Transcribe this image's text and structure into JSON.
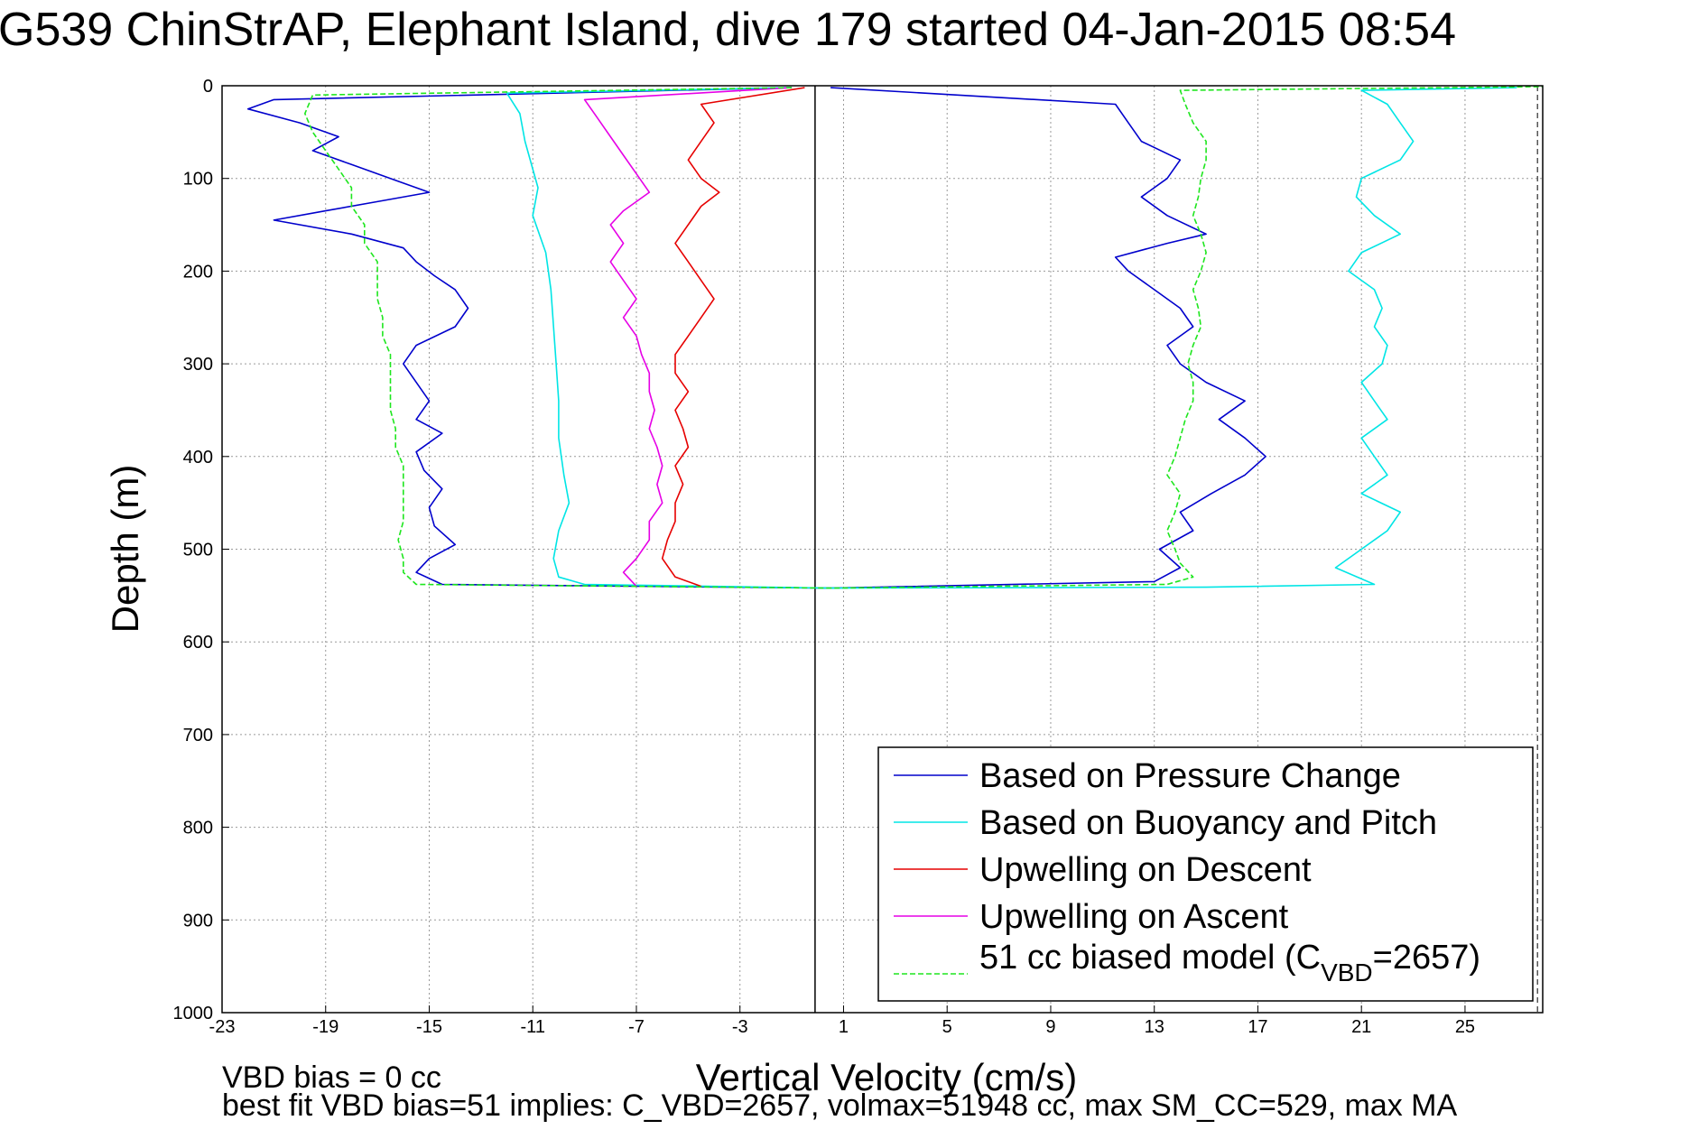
{
  "title": "G539 ChinStrAP, Elephant Island, dive 179 started 04-Jan-2015 08:54",
  "notes": {
    "line1": "VBD bias = 0 cc",
    "line2": "best fit VBD bias=51 implies: C_VBD=2657, volmax=51948 cc, max SM_CC=529, max MA"
  },
  "chart_data": {
    "type": "line",
    "title": "G539 ChinStrAP, Elephant Island, dive 179 started 04-Jan-2015 08:54",
    "xlabel": "Vertical Velocity (cm/s)",
    "ylabel": "Depth (m)",
    "xlim": [
      -23,
      28
    ],
    "ylim": [
      0,
      1000
    ],
    "y_reversed": true,
    "xticks": [
      -23,
      -19,
      -15,
      -11,
      -7,
      -3,
      1,
      5,
      9,
      13,
      17,
      21,
      25
    ],
    "yticks": [
      0,
      100,
      200,
      300,
      400,
      500,
      600,
      700,
      800,
      900,
      1000
    ],
    "grid": true,
    "legend_position": "bottom-right",
    "vertical_lines": [
      {
        "x": -0.1,
        "style": "solid"
      },
      {
        "x": 27.8,
        "style": "dashed"
      }
    ],
    "series": [
      {
        "name": "Based on Pressure Change",
        "color": "#0000cc",
        "style": "solid",
        "points": [
          [
            -1,
            2
          ],
          [
            -21,
            15
          ],
          [
            -22,
            25
          ],
          [
            -20,
            40
          ],
          [
            -18.5,
            55
          ],
          [
            -19.5,
            70
          ],
          [
            -18,
            85
          ],
          [
            -16.5,
            100
          ],
          [
            -15,
            115
          ],
          [
            -17,
            125
          ],
          [
            -19,
            135
          ],
          [
            -21,
            145
          ],
          [
            -18,
            160
          ],
          [
            -16,
            175
          ],
          [
            -15.5,
            190
          ],
          [
            -14.8,
            205
          ],
          [
            -14,
            220
          ],
          [
            -13.5,
            240
          ],
          [
            -14,
            260
          ],
          [
            -15.5,
            280
          ],
          [
            -16,
            300
          ],
          [
            -15.5,
            320
          ],
          [
            -15,
            340
          ],
          [
            -15.5,
            360
          ],
          [
            -14.5,
            375
          ],
          [
            -15.5,
            395
          ],
          [
            -15.2,
            415
          ],
          [
            -14.5,
            435
          ],
          [
            -15,
            455
          ],
          [
            -14.8,
            475
          ],
          [
            -14,
            495
          ],
          [
            -15,
            510
          ],
          [
            -15.5,
            525
          ],
          [
            -14.5,
            538
          ],
          [
            0.5,
            542
          ],
          [
            13,
            535
          ],
          [
            14,
            520
          ],
          [
            13.2,
            500
          ],
          [
            14.5,
            480
          ],
          [
            14,
            460
          ],
          [
            15.2,
            440
          ],
          [
            16.5,
            420
          ],
          [
            17.3,
            400
          ],
          [
            16.5,
            380
          ],
          [
            15.5,
            360
          ],
          [
            16.5,
            340
          ],
          [
            15,
            320
          ],
          [
            14,
            300
          ],
          [
            13.5,
            280
          ],
          [
            14.5,
            260
          ],
          [
            14,
            240
          ],
          [
            13,
            220
          ],
          [
            12,
            200
          ],
          [
            11.5,
            185
          ],
          [
            13.5,
            170
          ],
          [
            15,
            160
          ],
          [
            13.5,
            140
          ],
          [
            12.5,
            120
          ],
          [
            13.5,
            100
          ],
          [
            14,
            80
          ],
          [
            12.5,
            60
          ],
          [
            12,
            40
          ],
          [
            11.5,
            20
          ],
          [
            0.5,
            2
          ]
        ]
      },
      {
        "name": "Based on Buoyancy and Pitch",
        "color": "#00e5e5",
        "style": "solid",
        "points": [
          [
            -1,
            2
          ],
          [
            -12,
            8
          ],
          [
            -11.5,
            30
          ],
          [
            -11.3,
            60
          ],
          [
            -11,
            90
          ],
          [
            -10.8,
            110
          ],
          [
            -11,
            140
          ],
          [
            -10.5,
            180
          ],
          [
            -10.3,
            220
          ],
          [
            -10.2,
            260
          ],
          [
            -10.1,
            300
          ],
          [
            -10,
            340
          ],
          [
            -10,
            380
          ],
          [
            -9.8,
            420
          ],
          [
            -9.6,
            450
          ],
          [
            -10,
            480
          ],
          [
            -10.2,
            510
          ],
          [
            -10,
            530
          ],
          [
            -9,
            538
          ],
          [
            0.5,
            542
          ],
          [
            15,
            541
          ],
          [
            21.5,
            538
          ],
          [
            20,
            520
          ],
          [
            21,
            500
          ],
          [
            22,
            480
          ],
          [
            22.5,
            460
          ],
          [
            21,
            440
          ],
          [
            22,
            420
          ],
          [
            21.5,
            400
          ],
          [
            21,
            380
          ],
          [
            22,
            360
          ],
          [
            21.5,
            340
          ],
          [
            21,
            320
          ],
          [
            21.8,
            300
          ],
          [
            22,
            280
          ],
          [
            21.5,
            260
          ],
          [
            21.8,
            240
          ],
          [
            21.5,
            220
          ],
          [
            20.5,
            200
          ],
          [
            21,
            180
          ],
          [
            22.5,
            160
          ],
          [
            21.5,
            140
          ],
          [
            20.8,
            120
          ],
          [
            21,
            100
          ],
          [
            22.5,
            80
          ],
          [
            23,
            60
          ],
          [
            22.5,
            40
          ],
          [
            22,
            20
          ],
          [
            21,
            5
          ],
          [
            27,
            2
          ]
        ]
      },
      {
        "name": "Upwelling on Descent",
        "color": "#e60000",
        "style": "solid",
        "points": [
          [
            -0.5,
            2
          ],
          [
            -4.5,
            20
          ],
          [
            -4,
            40
          ],
          [
            -4.5,
            60
          ],
          [
            -5,
            80
          ],
          [
            -4.5,
            100
          ],
          [
            -3.8,
            115
          ],
          [
            -4.5,
            130
          ],
          [
            -5,
            150
          ],
          [
            -5.5,
            170
          ],
          [
            -5,
            190
          ],
          [
            -4.5,
            210
          ],
          [
            -4,
            230
          ],
          [
            -4.5,
            250
          ],
          [
            -5,
            270
          ],
          [
            -5.5,
            290
          ],
          [
            -5.5,
            310
          ],
          [
            -5,
            330
          ],
          [
            -5.5,
            350
          ],
          [
            -5.2,
            370
          ],
          [
            -5,
            390
          ],
          [
            -5.5,
            410
          ],
          [
            -5.2,
            430
          ],
          [
            -5.5,
            450
          ],
          [
            -5.5,
            470
          ],
          [
            -5.8,
            490
          ],
          [
            -6,
            510
          ],
          [
            -5.5,
            530
          ],
          [
            -4.5,
            540
          ]
        ]
      },
      {
        "name": "Upwelling on Ascent",
        "color": "#e600e6",
        "style": "solid",
        "points": [
          [
            -1,
            2
          ],
          [
            -9,
            15
          ],
          [
            -8.5,
            35
          ],
          [
            -8,
            55
          ],
          [
            -7.5,
            75
          ],
          [
            -7,
            95
          ],
          [
            -6.5,
            115
          ],
          [
            -7.5,
            135
          ],
          [
            -8,
            150
          ],
          [
            -7.5,
            170
          ],
          [
            -8,
            190
          ],
          [
            -7.5,
            210
          ],
          [
            -7,
            230
          ],
          [
            -7.5,
            250
          ],
          [
            -7,
            270
          ],
          [
            -6.8,
            290
          ],
          [
            -6.5,
            310
          ],
          [
            -6.5,
            330
          ],
          [
            -6.3,
            350
          ],
          [
            -6.5,
            370
          ],
          [
            -6.2,
            390
          ],
          [
            -6,
            410
          ],
          [
            -6.2,
            430
          ],
          [
            -6,
            450
          ],
          [
            -6.5,
            470
          ],
          [
            -6.5,
            490
          ],
          [
            -7,
            510
          ],
          [
            -7.5,
            525
          ],
          [
            -7,
            540
          ]
        ]
      },
      {
        "name": "51 cc biased model (C_VBD=2657)",
        "color": "#1ee61e",
        "style": "dashed",
        "points": [
          [
            -1,
            2
          ],
          [
            -19.5,
            10
          ],
          [
            -19.8,
            30
          ],
          [
            -19.5,
            50
          ],
          [
            -19,
            70
          ],
          [
            -18.5,
            90
          ],
          [
            -18,
            110
          ],
          [
            -18,
            130
          ],
          [
            -17.5,
            150
          ],
          [
            -17.5,
            170
          ],
          [
            -17,
            190
          ],
          [
            -17,
            210
          ],
          [
            -17,
            230
          ],
          [
            -16.8,
            250
          ],
          [
            -16.8,
            270
          ],
          [
            -16.5,
            290
          ],
          [
            -16.5,
            310
          ],
          [
            -16.5,
            330
          ],
          [
            -16.5,
            350
          ],
          [
            -16.3,
            370
          ],
          [
            -16.3,
            390
          ],
          [
            -16,
            410
          ],
          [
            -16,
            430
          ],
          [
            -16,
            450
          ],
          [
            -16,
            470
          ],
          [
            -16.2,
            490
          ],
          [
            -16,
            510
          ],
          [
            -16,
            525
          ],
          [
            -15.5,
            538
          ],
          [
            0.5,
            542
          ],
          [
            13.5,
            538
          ],
          [
            14.5,
            530
          ],
          [
            14,
            515
          ],
          [
            13.8,
            500
          ],
          [
            13.5,
            480
          ],
          [
            13.8,
            460
          ],
          [
            14,
            440
          ],
          [
            13.5,
            420
          ],
          [
            13.8,
            400
          ],
          [
            14,
            380
          ],
          [
            14.2,
            360
          ],
          [
            14.5,
            340
          ],
          [
            14.5,
            320
          ],
          [
            14.3,
            300
          ],
          [
            14.5,
            280
          ],
          [
            14.8,
            260
          ],
          [
            14.7,
            240
          ],
          [
            14.5,
            220
          ],
          [
            14.8,
            200
          ],
          [
            15,
            180
          ],
          [
            14.8,
            160
          ],
          [
            14.5,
            140
          ],
          [
            14.7,
            120
          ],
          [
            14.8,
            100
          ],
          [
            15,
            80
          ],
          [
            15,
            60
          ],
          [
            14.5,
            40
          ],
          [
            14.2,
            20
          ],
          [
            14,
            5
          ],
          [
            28,
            1
          ]
        ]
      }
    ]
  }
}
